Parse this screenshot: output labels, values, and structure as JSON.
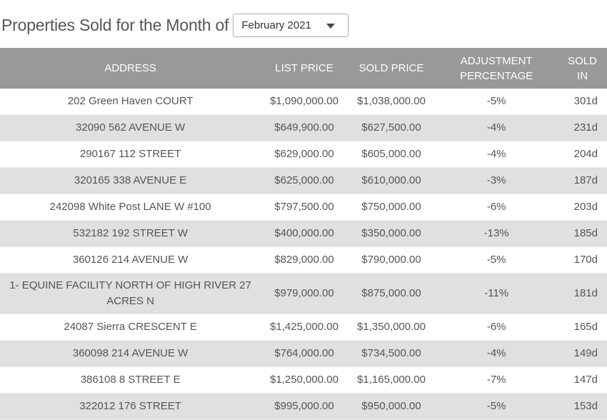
{
  "header": {
    "title": "Properties Sold for the Month of",
    "month_select": {
      "value": "February 2021"
    }
  },
  "table": {
    "columns": [
      "ADDRESS",
      "LIST PRICE",
      "SOLD PRICE",
      "ADJUSTMENT PERCENTAGE",
      "SOLD IN"
    ],
    "rows": [
      [
        "202 Green Haven COURT",
        "$1,090,000.00",
        "$1,038,000.00",
        "-5%",
        "301d"
      ],
      [
        "32090 562 AVENUE W",
        "$649,900.00",
        "$627,500.00",
        "-4%",
        "231d"
      ],
      [
        "290167 112 STREET",
        "$629,000.00",
        "$605,000.00",
        "-4%",
        "204d"
      ],
      [
        "320165 338 AVENUE E",
        "$625,000.00",
        "$610,000.00",
        "-3%",
        "187d"
      ],
      [
        "242098 White Post LANE W #100",
        "$797,500.00",
        "$750,000.00",
        "-6%",
        "203d"
      ],
      [
        "532182 192 STREET W",
        "$400,000.00",
        "$350,000.00",
        "-13%",
        "185d"
      ],
      [
        "360126 214 AVENUE W",
        "$829,000.00",
        "$790,000.00",
        "-5%",
        "170d"
      ],
      [
        "1- EQUINE FACILITY NORTH OF HIGH RIVER 27 ACRES N",
        "$979,000.00",
        "$875,000.00",
        "-11%",
        "181d"
      ],
      [
        "24087 Sierra CRESCENT E",
        "$1,425,000.00",
        "$1,350,000.00",
        "-6%",
        "165d"
      ],
      [
        "360098 214 AVENUE W",
        "$764,000.00",
        "$734,500.00",
        "-4%",
        "149d"
      ],
      [
        "386108 8 STREET E",
        "$1,250,000.00",
        "$1,165,000.00",
        "-7%",
        "147d"
      ],
      [
        "322012 176 STREET",
        "$995,000.00",
        "$950,000.00",
        "-5%",
        "153d"
      ]
    ]
  }
}
